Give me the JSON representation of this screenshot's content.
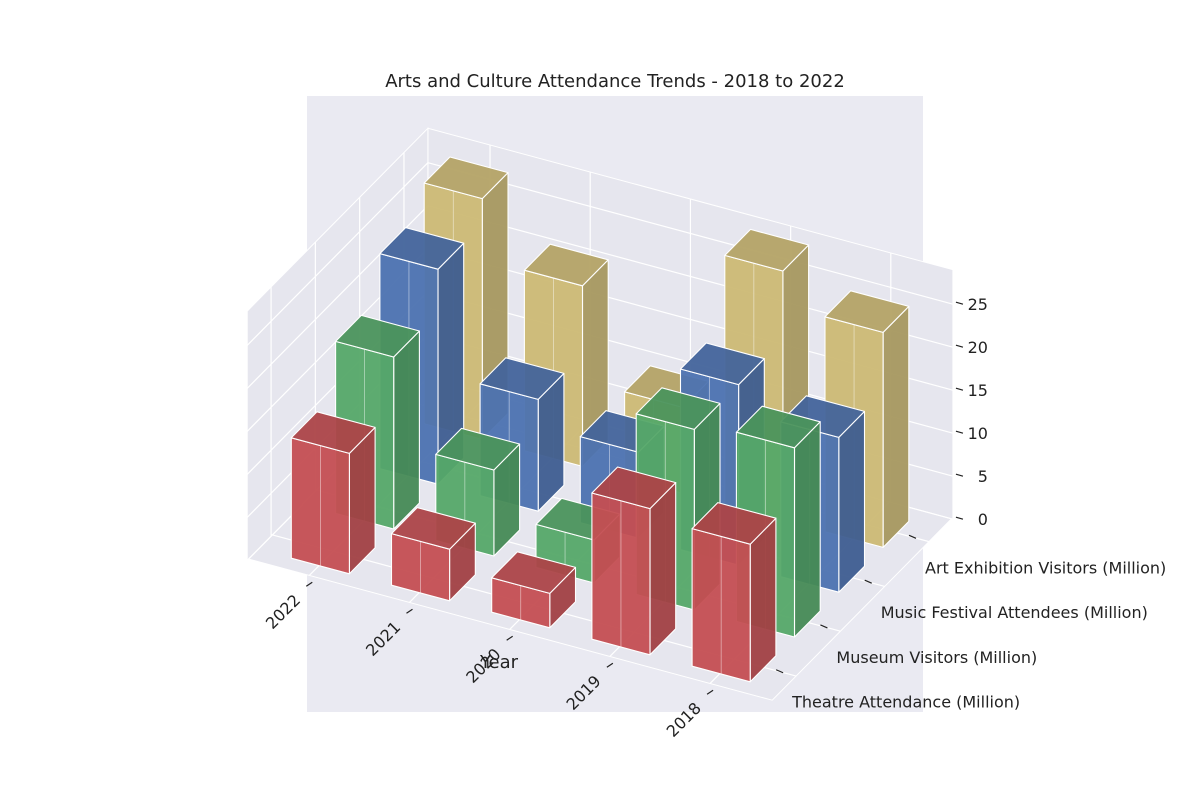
{
  "chart_data": {
    "type": "bar",
    "subtype": "3d-bar",
    "title": "Arts and Culture Attendance Trends - 2018 to 2022",
    "xlabel": "Year",
    "ylabel": "",
    "zlabel": "",
    "categories": [
      "2018",
      "2019",
      "2020",
      "2021",
      "2022"
    ],
    "series": [
      {
        "name": "Theatre Attendance (Million)",
        "values": [
          16,
          17,
          4,
          6,
          14
        ],
        "color": "#c44e52"
      },
      {
        "name": "Museum Visitors (Million)",
        "values": [
          22,
          21,
          5,
          10,
          20
        ],
        "color": "#55a868"
      },
      {
        "name": "Music Festival Attendees (Million)",
        "values": [
          18,
          21,
          10,
          13,
          25
        ],
        "color": "#4c72b0"
      },
      {
        "name": "Art Exhibition Visitors (Million)",
        "values": [
          25,
          29,
          10,
          21,
          28
        ],
        "color": "#ccb974"
      }
    ],
    "zticks": [
      0,
      5,
      10,
      15,
      20,
      25
    ],
    "zlim": [
      0,
      29
    ],
    "grid": true,
    "legend": "none"
  }
}
